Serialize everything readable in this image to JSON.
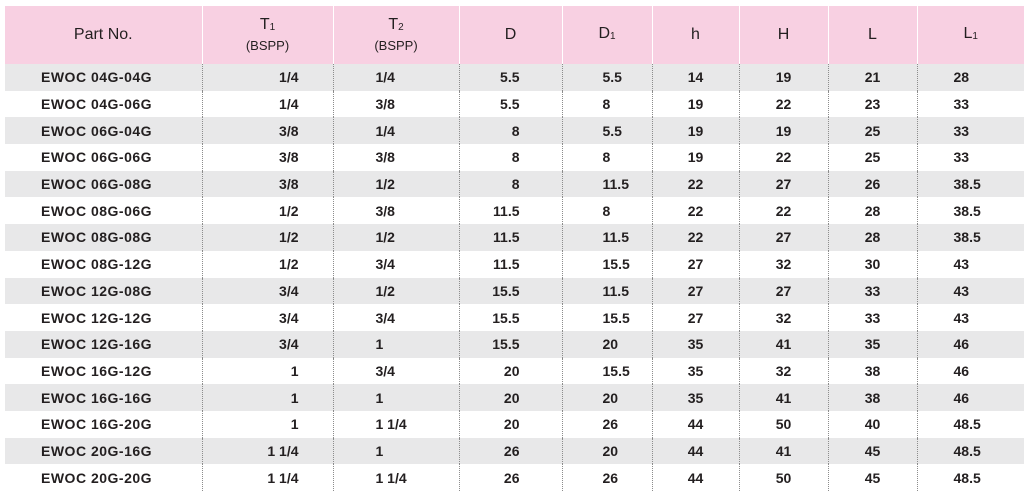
{
  "table": {
    "headers": [
      {
        "main": "Part No.",
        "base": "",
        "sub": "",
        "note": ""
      },
      {
        "main": "",
        "base": "T",
        "sub": "1",
        "note": "(BSPP)"
      },
      {
        "main": "",
        "base": "T",
        "sub": "2",
        "note": "(BSPP)"
      },
      {
        "main": "D",
        "base": "",
        "sub": "",
        "note": ""
      },
      {
        "main": "",
        "base": "D",
        "sub": "1",
        "note": ""
      },
      {
        "main": "h",
        "base": "",
        "sub": "",
        "note": ""
      },
      {
        "main": "H",
        "base": "",
        "sub": "",
        "note": ""
      },
      {
        "main": "L",
        "base": "",
        "sub": "",
        "note": ""
      },
      {
        "main": "",
        "base": "L",
        "sub": "1",
        "note": ""
      }
    ],
    "rows": [
      [
        "EWOC 04G-04G",
        "1/4",
        "1/4",
        "5.5",
        "5.5",
        "14",
        "19",
        "21",
        "28"
      ],
      [
        "EWOC 04G-06G",
        "1/4",
        "3/8",
        "5.5",
        "8",
        "19",
        "22",
        "23",
        "33"
      ],
      [
        "EWOC 06G-04G",
        "3/8",
        "1/4",
        "8",
        "5.5",
        "19",
        "19",
        "25",
        "33"
      ],
      [
        "EWOC 06G-06G",
        "3/8",
        "3/8",
        "8",
        "8",
        "19",
        "22",
        "25",
        "33"
      ],
      [
        "EWOC 06G-08G",
        "3/8",
        "1/2",
        "8",
        "11.5",
        "22",
        "27",
        "26",
        "38.5"
      ],
      [
        "EWOC 08G-06G",
        "1/2",
        "3/8",
        "11.5",
        "8",
        "22",
        "22",
        "28",
        "38.5"
      ],
      [
        "EWOC 08G-08G",
        "1/2",
        "1/2",
        "11.5",
        "11.5",
        "22",
        "27",
        "28",
        "38.5"
      ],
      [
        "EWOC 08G-12G",
        "1/2",
        "3/4",
        "11.5",
        "15.5",
        "27",
        "32",
        "30",
        "43"
      ],
      [
        "EWOC 12G-08G",
        "3/4",
        "1/2",
        "15.5",
        "11.5",
        "27",
        "27",
        "33",
        "43"
      ],
      [
        "EWOC 12G-12G",
        "3/4",
        "3/4",
        "15.5",
        "15.5",
        "27",
        "32",
        "33",
        "43"
      ],
      [
        "EWOC 12G-16G",
        "3/4",
        "1",
        "15.5",
        "20",
        "35",
        "41",
        "35",
        "46"
      ],
      [
        "EWOC 16G-12G",
        "1",
        "3/4",
        "20",
        "15.5",
        "35",
        "32",
        "38",
        "46"
      ],
      [
        "EWOC 16G-16G",
        "1",
        "1",
        "20",
        "20",
        "35",
        "41",
        "38",
        "46"
      ],
      [
        "EWOC 16G-20G",
        "1",
        "1 1/4",
        "20",
        "26",
        "44",
        "50",
        "40",
        "48.5"
      ],
      [
        "EWOC 20G-16G",
        "1 1/4",
        "1",
        "26",
        "20",
        "44",
        "41",
        "45",
        "48.5"
      ],
      [
        "EWOC 20G-20G",
        "1 1/4",
        "1 1/4",
        "26",
        "26",
        "44",
        "50",
        "45",
        "48.5"
      ]
    ]
  },
  "colors": {
    "header_bg": "#f8d0e2",
    "alt_row_bg": "#e8e8e9",
    "text": "#231f20"
  }
}
